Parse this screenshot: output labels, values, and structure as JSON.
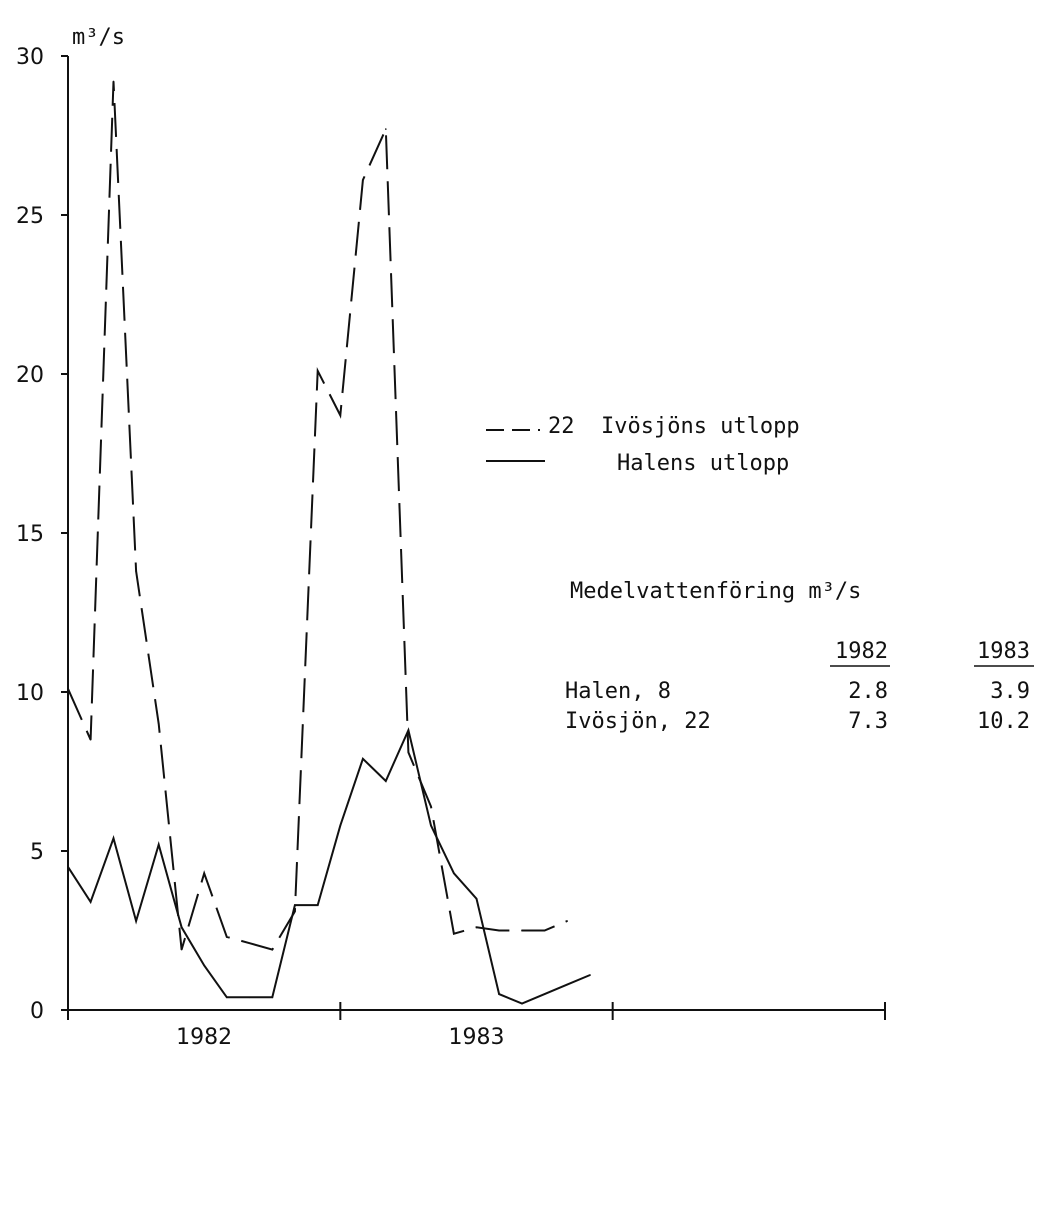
{
  "chart_data": {
    "type": "line",
    "ylabel": "m³/s",
    "ylim": [
      0,
      30
    ],
    "yticks": [
      0,
      5,
      10,
      15,
      20,
      25,
      30
    ],
    "x_tick_labels": [
      "1982",
      "1983"
    ],
    "xlim": [
      0,
      3
    ],
    "grid": false,
    "legend_placement": "right",
    "series": [
      {
        "name": "22  Ivösjöns utlopp",
        "style": "dashed",
        "x": [
          0.0,
          0.083,
          0.167,
          0.25,
          0.333,
          0.417,
          0.5,
          0.583,
          0.667,
          0.75,
          0.833,
          0.917,
          1.0,
          1.083,
          1.167,
          1.25,
          1.333,
          1.417,
          1.5,
          1.583,
          1.667,
          1.75,
          1.833,
          1.917,
          2.0
        ],
        "values": [
          10.1,
          8.5,
          29.2,
          13.8,
          9.0,
          1.9,
          4.3,
          2.3,
          2.1,
          1.9,
          3.1,
          20.1,
          18.7,
          26.1,
          27.7,
          8.1,
          6.4,
          2.4,
          2.6,
          2.5,
          2.5,
          2.5,
          2.8,
          null,
          null
        ]
      },
      {
        "name": "Halens utlopp",
        "style": "solid",
        "x": [
          0.0,
          0.083,
          0.167,
          0.25,
          0.333,
          0.417,
          0.5,
          0.583,
          0.667,
          0.75,
          0.833,
          0.917,
          1.0,
          1.083,
          1.167,
          1.25,
          1.333,
          1.417,
          1.5,
          1.583,
          1.667,
          1.75,
          1.833,
          1.917,
          2.0
        ],
        "values": [
          4.5,
          3.4,
          5.4,
          2.8,
          5.2,
          2.6,
          1.4,
          0.4,
          0.4,
          0.4,
          3.3,
          3.3,
          5.8,
          7.9,
          7.2,
          8.8,
          5.8,
          4.3,
          3.5,
          0.5,
          0.2,
          0.5,
          0.8,
          1.1,
          null
        ]
      }
    ]
  },
  "legend": {
    "items": [
      {
        "label": "22  Ivösjöns utlopp",
        "style": "dashed"
      },
      {
        "label": "Halens utlopp",
        "style": "solid"
      }
    ]
  },
  "annotation": {
    "title": "Medelvattenföring m³/s",
    "years": [
      "1982",
      "1983"
    ],
    "rows": [
      {
        "label": "Halen, 8",
        "v1982": "2.8",
        "v1983": "3.9"
      },
      {
        "label": "Ivösjön, 22",
        "v1982": "7.3",
        "v1983": "10.2"
      }
    ]
  }
}
